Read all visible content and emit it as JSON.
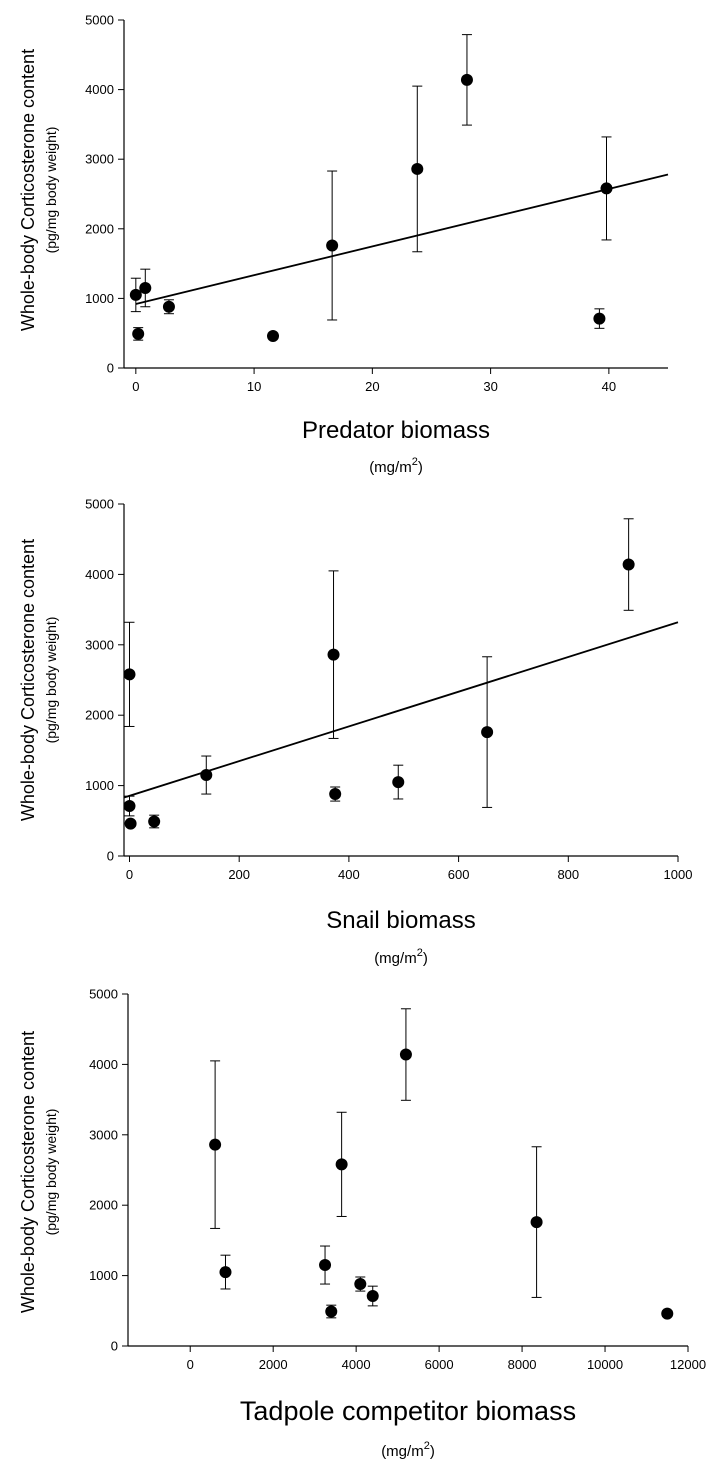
{
  "chart_data": [
    {
      "type": "scatter",
      "xlabel": "Predator biomass",
      "xunit": "(mg/m2)",
      "ylabel": "Whole-body Corticosterone content",
      "yunit": "(pg/mg body weight)",
      "xlim": [
        -1,
        45
      ],
      "ylim": [
        0,
        5000
      ],
      "xticks": [
        0,
        10,
        20,
        30,
        40
      ],
      "yticks": [
        0,
        1000,
        2000,
        3000,
        4000,
        5000
      ],
      "grid": false,
      "series": [
        {
          "points": [
            {
              "x": 0,
              "y": 1050,
              "err": 240
            },
            {
              "x": 0.8,
              "y": 1150,
              "err": 270
            },
            {
              "x": 0.2,
              "y": 490,
              "err": 90
            },
            {
              "x": 2.8,
              "y": 880,
              "err": 100
            },
            {
              "x": 11.6,
              "y": 460,
              "err": 40
            },
            {
              "x": 16.6,
              "y": 1760,
              "err": 1070
            },
            {
              "x": 23.8,
              "y": 2860,
              "err": 1190
            },
            {
              "x": 28,
              "y": 4140,
              "err": 650
            },
            {
              "x": 39.2,
              "y": 710,
              "err": 140
            },
            {
              "x": 39.8,
              "y": 2580,
              "err": 740
            }
          ]
        }
      ],
      "trendline": {
        "x": [
          0,
          45
        ],
        "y": [
          920,
          2780
        ]
      }
    },
    {
      "type": "scatter",
      "xlabel": "Snail biomass",
      "xunit": "(mg/m2)",
      "ylabel": "Whole-body Corticosterone content",
      "yunit": "(pg/mg body weight)",
      "xlim": [
        -10,
        1000
      ],
      "ylim": [
        0,
        5000
      ],
      "xticks": [
        0,
        200,
        400,
        600,
        800,
        1000
      ],
      "yticks": [
        0,
        1000,
        2000,
        3000,
        4000,
        5000
      ],
      "grid": false,
      "series": [
        {
          "points": [
            {
              "x": 0,
              "y": 2580,
              "err": 740
            },
            {
              "x": 0,
              "y": 710,
              "err": 140
            },
            {
              "x": 2,
              "y": 460,
              "err": 40
            },
            {
              "x": 45,
              "y": 490,
              "err": 90
            },
            {
              "x": 140,
              "y": 1150,
              "err": 270
            },
            {
              "x": 372,
              "y": 2860,
              "err": 1190
            },
            {
              "x": 375,
              "y": 880,
              "err": 100
            },
            {
              "x": 490,
              "y": 1050,
              "err": 240
            },
            {
              "x": 652,
              "y": 1760,
              "err": 1070
            },
            {
              "x": 910,
              "y": 4140,
              "err": 650
            }
          ]
        }
      ],
      "trendline": {
        "x": [
          -10,
          1000
        ],
        "y": [
          830,
          3320
        ]
      }
    },
    {
      "type": "scatter",
      "xlabel": "Tadpole competitor biomass",
      "xunit": "(mg/m2)",
      "ylabel": "Whole-body Corticosterone content",
      "yunit": "(pg/mg body weight)",
      "xlim": [
        -1500,
        12000
      ],
      "ylim": [
        0,
        5000
      ],
      "xticks": [
        0,
        2000,
        4000,
        6000,
        8000,
        10000,
        12000
      ],
      "yticks": [
        0,
        1000,
        2000,
        3000,
        4000,
        5000
      ],
      "grid": false,
      "series": [
        {
          "points": [
            {
              "x": 600,
              "y": 2860,
              "err": 1190
            },
            {
              "x": 850,
              "y": 1050,
              "err": 240
            },
            {
              "x": 3250,
              "y": 1150,
              "err": 270
            },
            {
              "x": 3400,
              "y": 490,
              "err": 90
            },
            {
              "x": 3650,
              "y": 2580,
              "err": 740
            },
            {
              "x": 4100,
              "y": 880,
              "err": 100
            },
            {
              "x": 4400,
              "y": 710,
              "err": 140
            },
            {
              "x": 5200,
              "y": 4140,
              "err": 650
            },
            {
              "x": 8350,
              "y": 1760,
              "err": 1070
            },
            {
              "x": 11500,
              "y": 460,
              "err": 40
            }
          ]
        }
      ]
    }
  ]
}
